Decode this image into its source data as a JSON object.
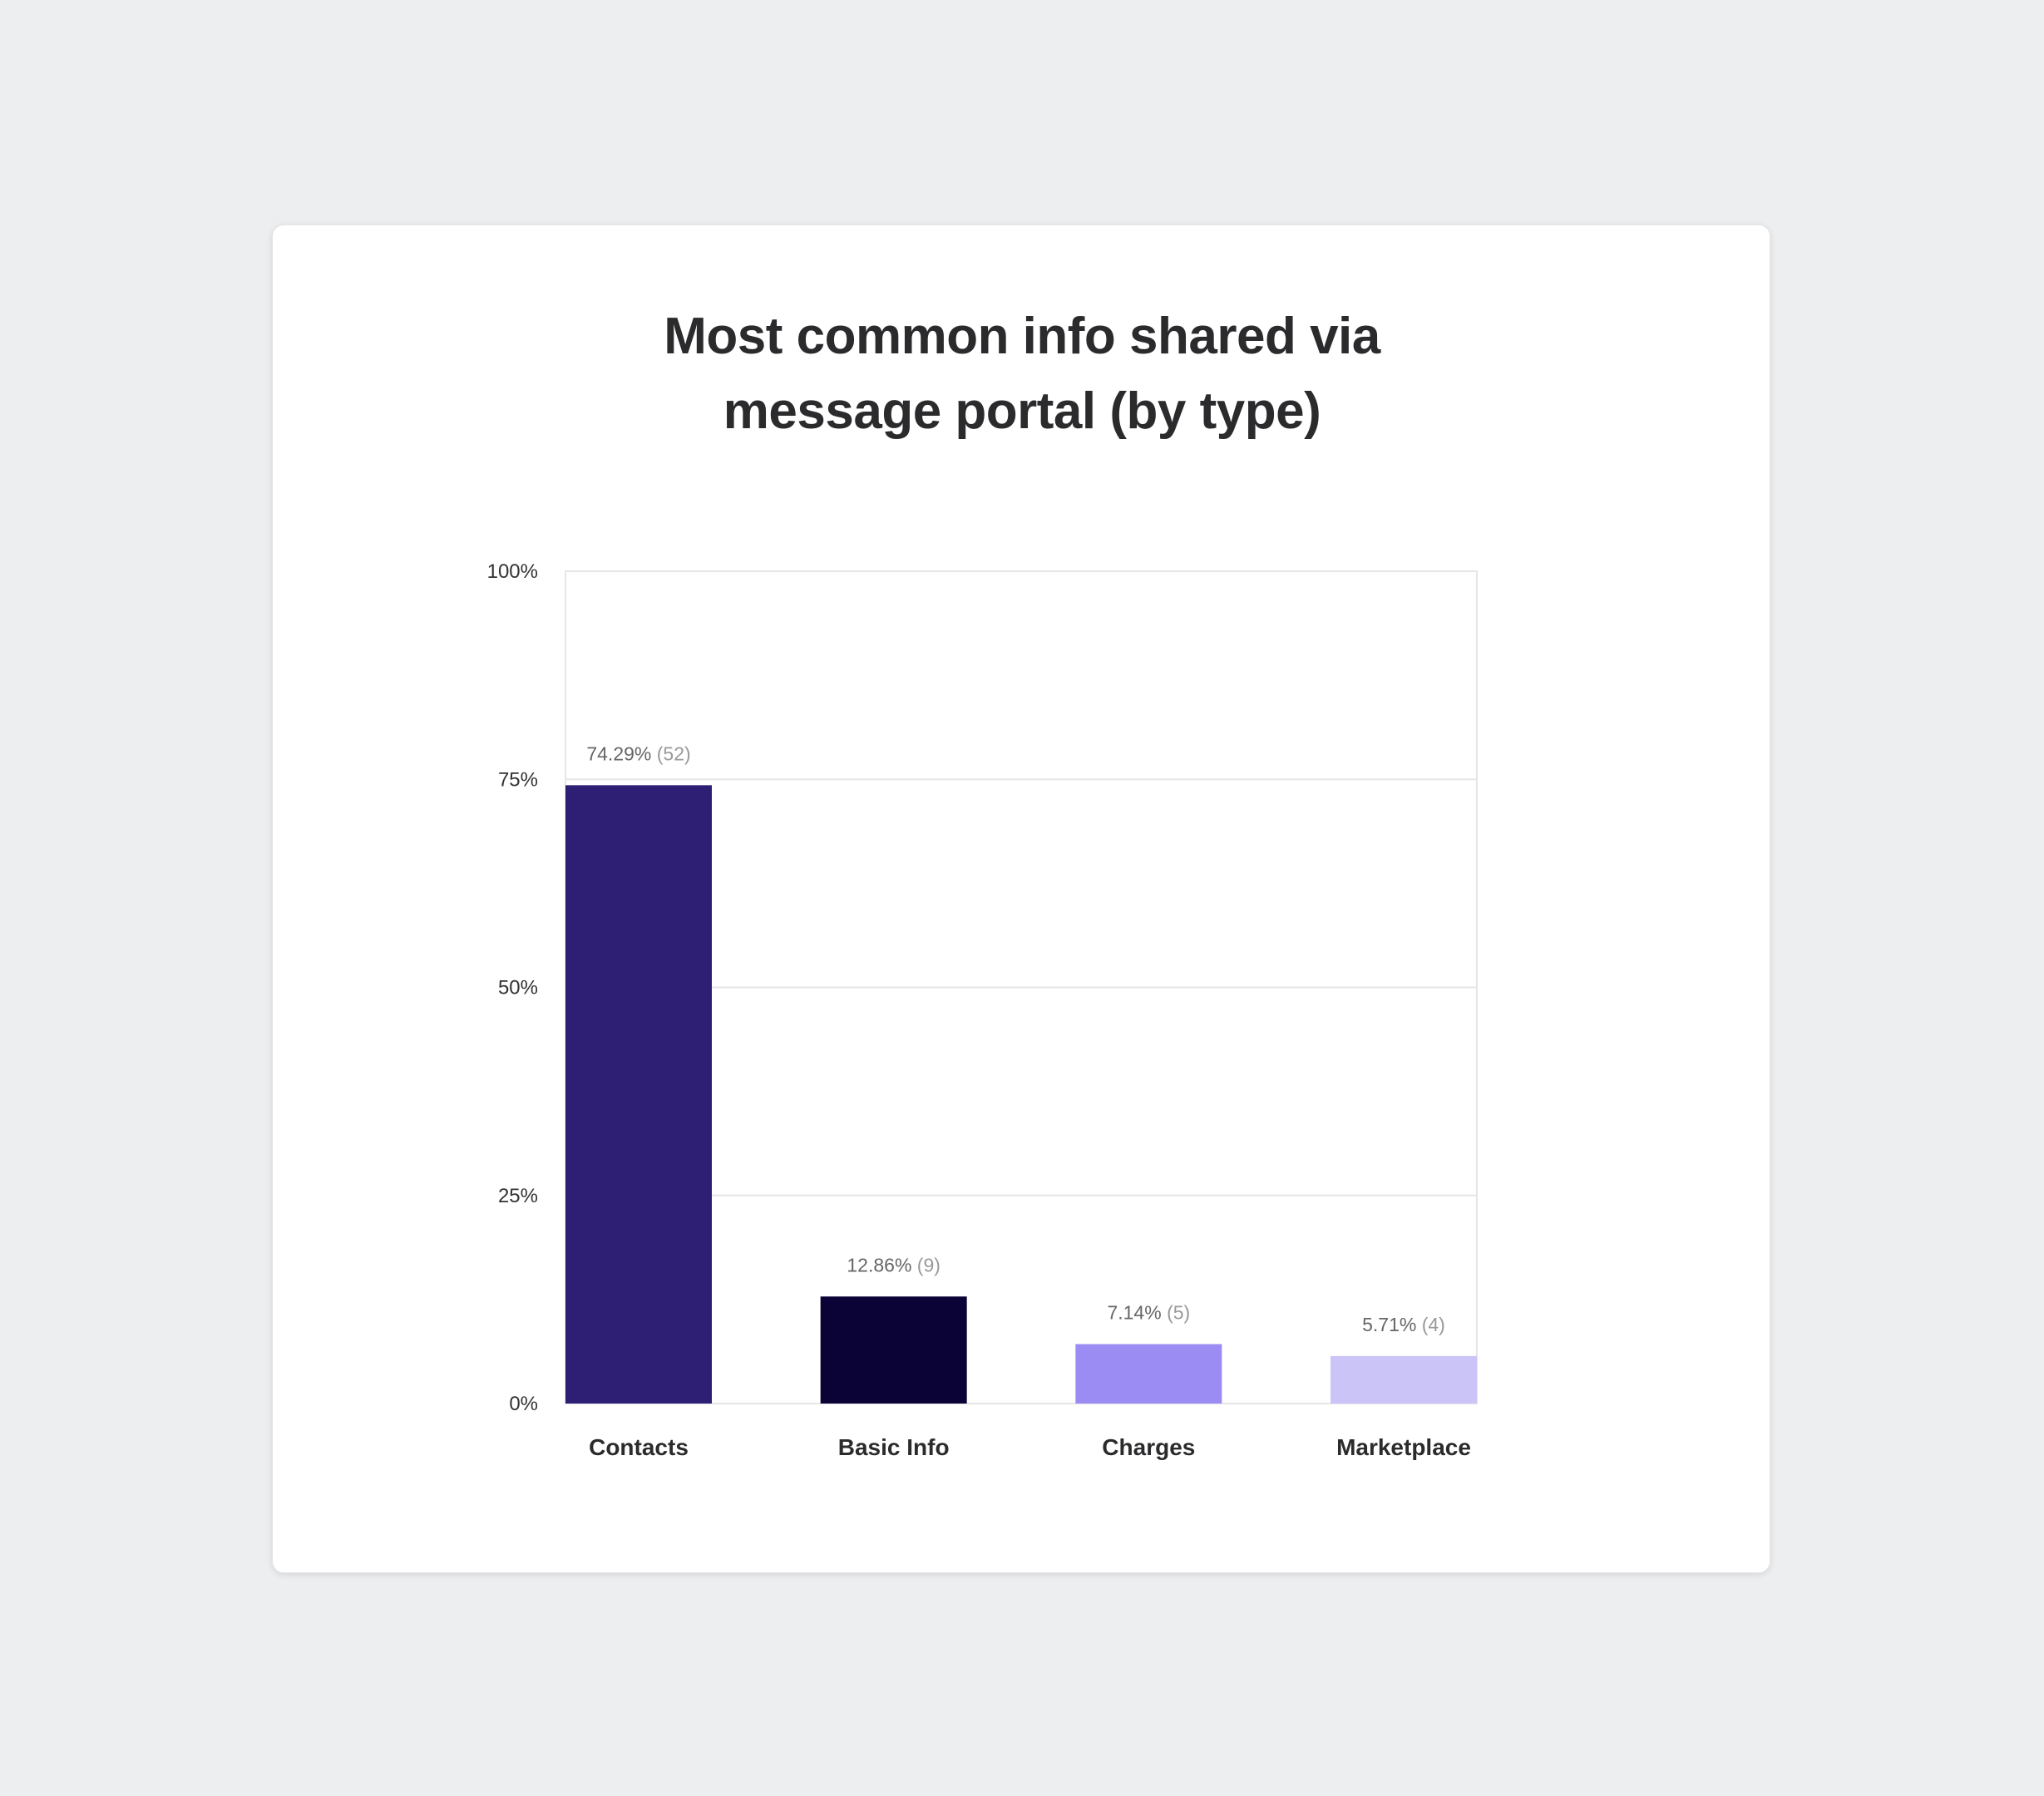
{
  "colors": {
    "background": "#edeef0",
    "card": "#ffffff",
    "grid": "#e6e6e8"
  },
  "chart_data": {
    "type": "bar",
    "title_lines": [
      "Most common info shared via",
      "message portal (by type)"
    ],
    "categories": [
      "Contacts",
      "Basic Info",
      "Charges",
      "Marketplace"
    ],
    "values": [
      74.29,
      12.86,
      7.14,
      5.71
    ],
    "counts": [
      52,
      9,
      5,
      4
    ],
    "value_labels": [
      "74.29%",
      "12.86%",
      "7.14%",
      "5.71%"
    ],
    "count_labels": [
      "(52)",
      "(9)",
      "(5)",
      "(4)"
    ],
    "bar_colors": [
      "#2e1f74",
      "#0b0236",
      "#9a8cf3",
      "#cbc4f7"
    ],
    "yticks": [
      0,
      25,
      50,
      75,
      100
    ],
    "ytick_labels": [
      "0%",
      "25%",
      "50%",
      "75%",
      "100%"
    ],
    "ylim": [
      0,
      100
    ],
    "xlabel": "",
    "ylabel": "",
    "grid": true,
    "legend": "none"
  }
}
